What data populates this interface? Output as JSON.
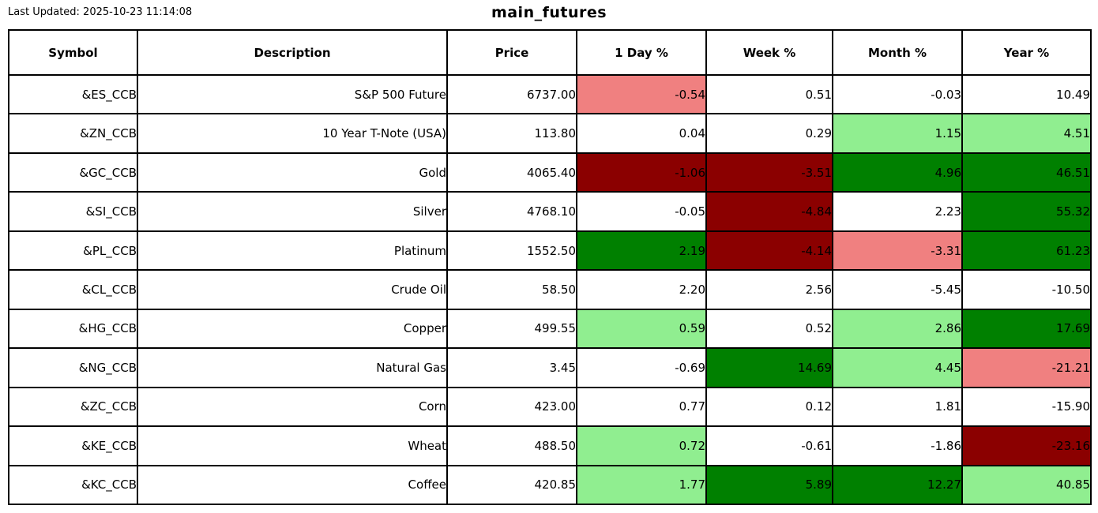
{
  "page": {
    "last_updated": "Last Updated: 2025-10-23 11:14:08",
    "title": "main_futures"
  },
  "colors": {
    "none": "#FFFFFF",
    "light_red": "#F08080",
    "dark_red": "#8B0000",
    "light_green": "#90EE90",
    "dark_green": "#008000"
  },
  "chart_data": {
    "type": "table",
    "title": "main_futures",
    "columns": [
      "Symbol",
      "Description",
      "Price",
      "1 Day %",
      "Week %",
      "Month %",
      "Year %"
    ],
    "rows": [
      {
        "symbol": "&ES_CCB",
        "description": "S&P 500 Future",
        "price": "6737.00",
        "pcts": [
          {
            "value": "-0.54",
            "bg": "light_red"
          },
          {
            "value": "0.51",
            "bg": "none"
          },
          {
            "value": "-0.03",
            "bg": "none"
          },
          {
            "value": "10.49",
            "bg": "none"
          }
        ]
      },
      {
        "symbol": "&ZN_CCB",
        "description": "10 Year T-Note (USA)",
        "price": "113.80",
        "pcts": [
          {
            "value": "0.04",
            "bg": "none"
          },
          {
            "value": "0.29",
            "bg": "none"
          },
          {
            "value": "1.15",
            "bg": "light_green"
          },
          {
            "value": "4.51",
            "bg": "light_green"
          }
        ]
      },
      {
        "symbol": "&GC_CCB",
        "description": "Gold",
        "price": "4065.40",
        "pcts": [
          {
            "value": "-1.06",
            "bg": "dark_red"
          },
          {
            "value": "-3.51",
            "bg": "dark_red"
          },
          {
            "value": "4.96",
            "bg": "dark_green"
          },
          {
            "value": "46.51",
            "bg": "dark_green"
          }
        ]
      },
      {
        "symbol": "&SI_CCB",
        "description": "Silver",
        "price": "4768.10",
        "pcts": [
          {
            "value": "-0.05",
            "bg": "none"
          },
          {
            "value": "-4.84",
            "bg": "dark_red"
          },
          {
            "value": "2.23",
            "bg": "none"
          },
          {
            "value": "55.32",
            "bg": "dark_green"
          }
        ]
      },
      {
        "symbol": "&PL_CCB",
        "description": "Platinum",
        "price": "1552.50",
        "pcts": [
          {
            "value": "2.19",
            "bg": "dark_green"
          },
          {
            "value": "-4.14",
            "bg": "dark_red"
          },
          {
            "value": "-3.31",
            "bg": "light_red"
          },
          {
            "value": "61.23",
            "bg": "dark_green"
          }
        ]
      },
      {
        "symbol": "&CL_CCB",
        "description": "Crude Oil",
        "price": "58.50",
        "pcts": [
          {
            "value": "2.20",
            "bg": "none"
          },
          {
            "value": "2.56",
            "bg": "none"
          },
          {
            "value": "-5.45",
            "bg": "none"
          },
          {
            "value": "-10.50",
            "bg": "none"
          }
        ]
      },
      {
        "symbol": "&HG_CCB",
        "description": "Copper",
        "price": "499.55",
        "pcts": [
          {
            "value": "0.59",
            "bg": "light_green"
          },
          {
            "value": "0.52",
            "bg": "none"
          },
          {
            "value": "2.86",
            "bg": "light_green"
          },
          {
            "value": "17.69",
            "bg": "dark_green"
          }
        ]
      },
      {
        "symbol": "&NG_CCB",
        "description": "Natural Gas",
        "price": "3.45",
        "pcts": [
          {
            "value": "-0.69",
            "bg": "none"
          },
          {
            "value": "14.69",
            "bg": "dark_green"
          },
          {
            "value": "4.45",
            "bg": "light_green"
          },
          {
            "value": "-21.21",
            "bg": "light_red"
          }
        ]
      },
      {
        "symbol": "&ZC_CCB",
        "description": "Corn",
        "price": "423.00",
        "pcts": [
          {
            "value": "0.77",
            "bg": "none"
          },
          {
            "value": "0.12",
            "bg": "none"
          },
          {
            "value": "1.81",
            "bg": "none"
          },
          {
            "value": "-15.90",
            "bg": "none"
          }
        ]
      },
      {
        "symbol": "&KE_CCB",
        "description": "Wheat",
        "price": "488.50",
        "pcts": [
          {
            "value": "0.72",
            "bg": "light_green"
          },
          {
            "value": "-0.61",
            "bg": "none"
          },
          {
            "value": "-1.86",
            "bg": "none"
          },
          {
            "value": "-23.16",
            "bg": "dark_red"
          }
        ]
      },
      {
        "symbol": "&KC_CCB",
        "description": "Coffee",
        "price": "420.85",
        "pcts": [
          {
            "value": "1.77",
            "bg": "light_green"
          },
          {
            "value": "5.89",
            "bg": "dark_green"
          },
          {
            "value": "12.27",
            "bg": "dark_green"
          },
          {
            "value": "40.85",
            "bg": "light_green"
          }
        ]
      }
    ]
  }
}
